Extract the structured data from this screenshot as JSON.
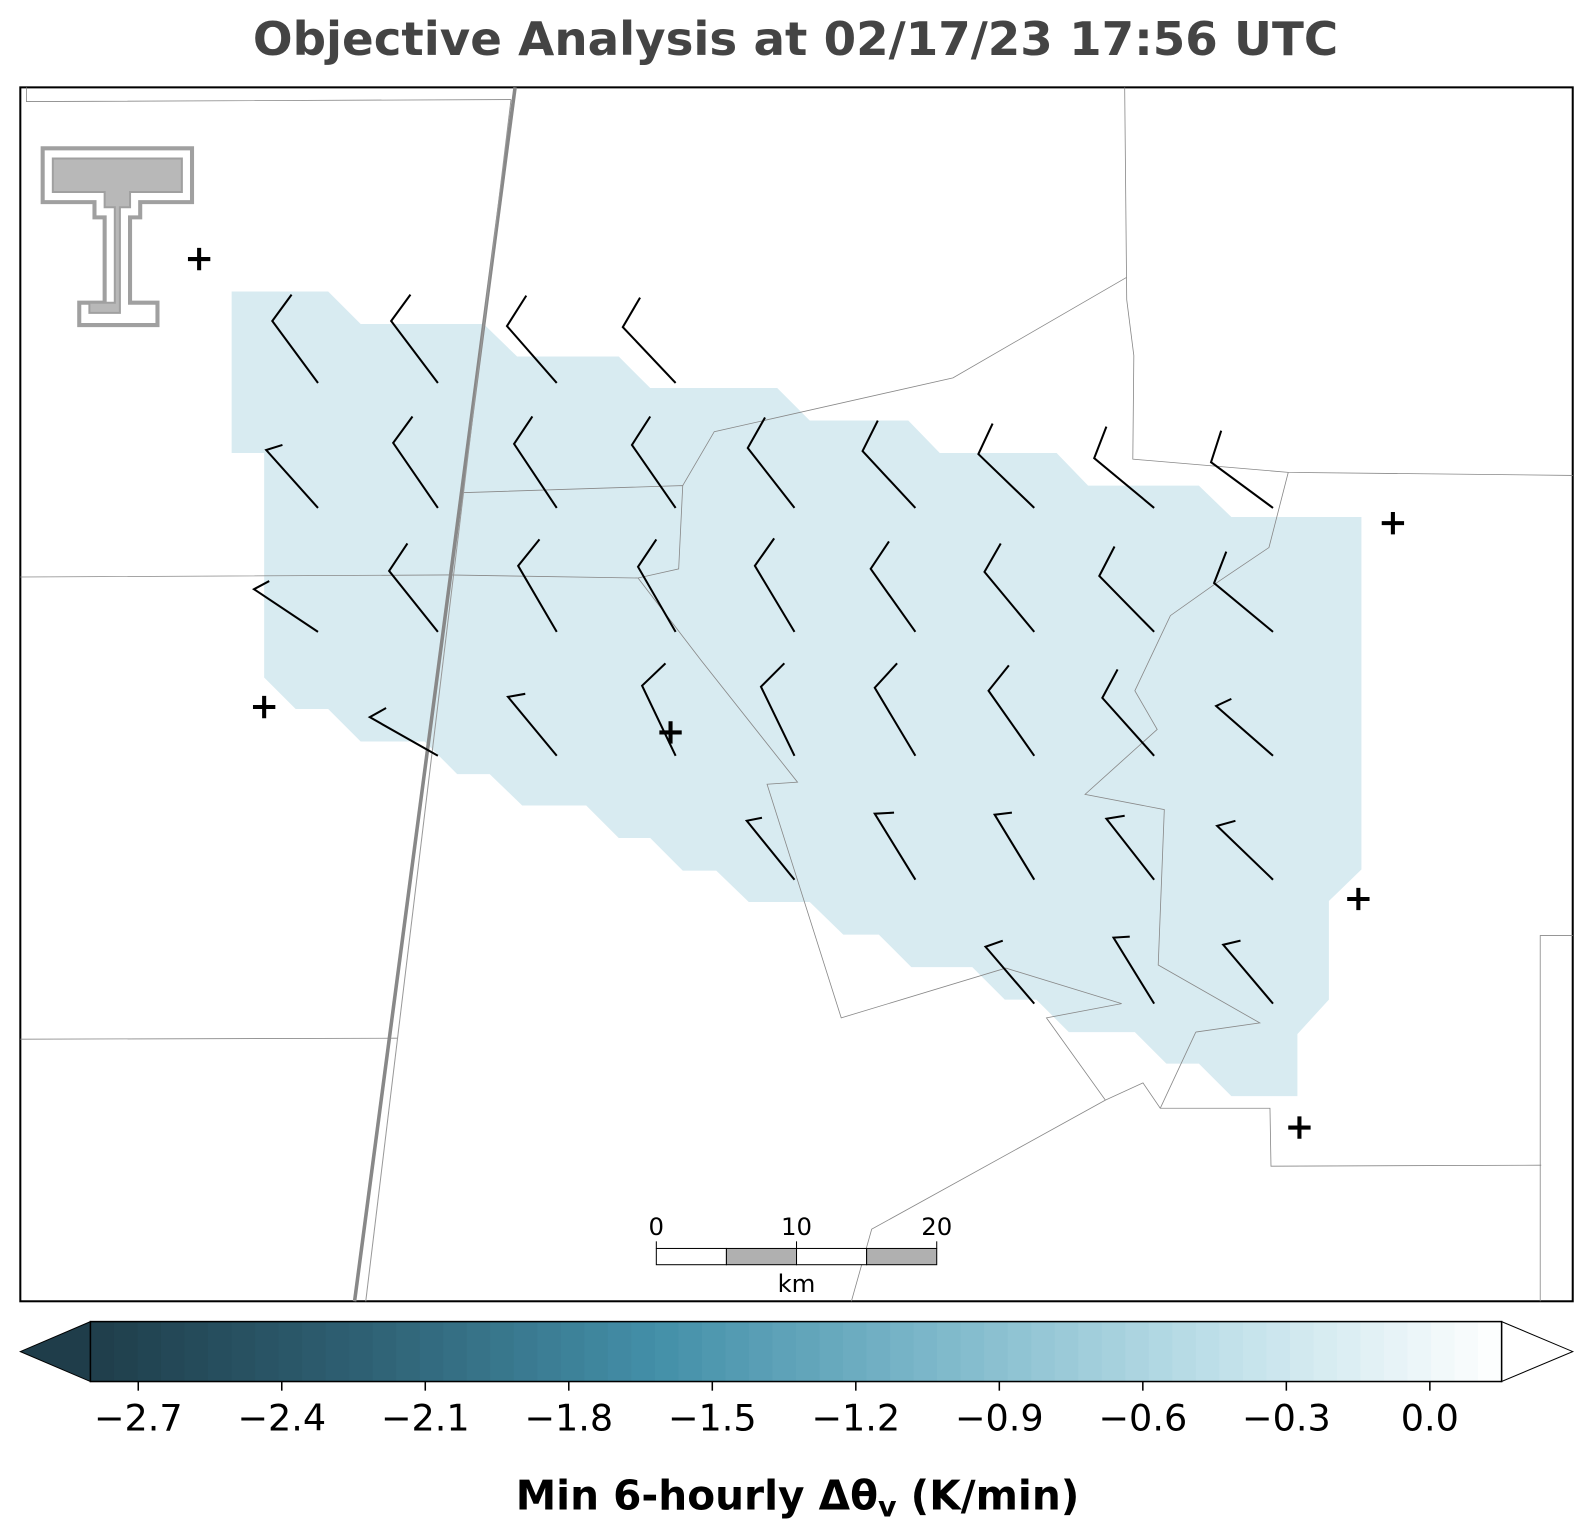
{
  "title": "Objective Analysis at 02/17/23 17:56 UTC",
  "colorbar": {
    "label": {
      "main": "Min 6-hourly Δθ",
      "sub": "v",
      "tail": " (K/min)"
    },
    "clim": [
      -2.8,
      0.15
    ],
    "colormap": [
      "#1f3d4a",
      "#2f6275",
      "#438fa8",
      "#7db8ca",
      "#bfe0e9",
      "#ffffff"
    ],
    "ticks": [
      {
        "value": -2.7,
        "label": "−2.7"
      },
      {
        "value": -2.4,
        "label": "−2.4"
      },
      {
        "value": -2.1,
        "label": "−2.1"
      },
      {
        "value": -1.8,
        "label": "−1.8"
      },
      {
        "value": -1.5,
        "label": "−1.5"
      },
      {
        "value": -1.2,
        "label": "−1.2"
      },
      {
        "value": -0.9,
        "label": "−0.9"
      },
      {
        "value": -0.6,
        "label": "−0.6"
      },
      {
        "value": -0.3,
        "label": "−0.3"
      },
      {
        "value": 0,
        "label": "0.0"
      }
    ]
  },
  "scale_bar": {
    "ticks": [
      0,
      10,
      20
    ],
    "unit": "km"
  }
}
